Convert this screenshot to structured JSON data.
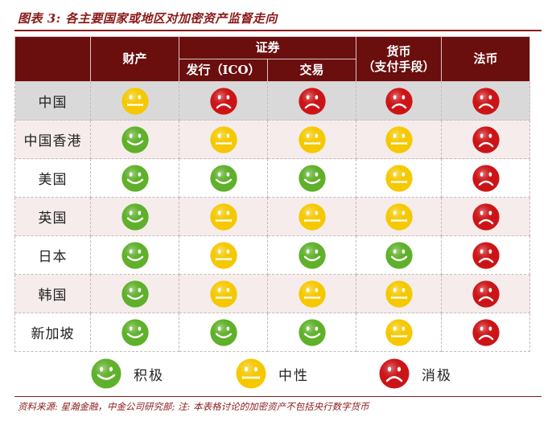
{
  "title": "图表 3:  各主要国家或地区对加密资产监督走向",
  "header": {
    "property": "财产",
    "securities": "证券",
    "issuance": "发行（ICO）",
    "trading": "交易",
    "currency_line1": "货币",
    "currency_line2": "（支付手段）",
    "legal_tender": "法币"
  },
  "rows": [
    {
      "name": "中国",
      "cells": [
        "neutral",
        "negative",
        "negative",
        "negative",
        "negative"
      ]
    },
    {
      "name": "中国香港",
      "cells": [
        "positive",
        "neutral",
        "neutral",
        "neutral",
        "negative"
      ]
    },
    {
      "name": "美国",
      "cells": [
        "positive",
        "positive",
        "positive",
        "neutral",
        "negative"
      ]
    },
    {
      "name": "英国",
      "cells": [
        "positive",
        "neutral",
        "neutral",
        "neutral",
        "negative"
      ]
    },
    {
      "name": "日本",
      "cells": [
        "positive",
        "neutral",
        "positive",
        "positive",
        "negative"
      ]
    },
    {
      "name": "韩国",
      "cells": [
        "positive",
        "neutral",
        "neutral",
        "neutral",
        "negative"
      ]
    },
    {
      "name": "新加坡",
      "cells": [
        "positive",
        "positive",
        "positive",
        "neutral",
        "negative"
      ]
    }
  ],
  "legend": {
    "positive": "积极",
    "neutral": "中性",
    "negative": "消极"
  },
  "colors": {
    "positive": "#5fb02a",
    "neutral": "#f5c800",
    "negative": "#cc1417",
    "header": "#6b0e0e",
    "accent": "#8b1a1a"
  },
  "source": "资料来源:  星瀚金融，中金公司研究部;  注:  本表格讨论的加密资产不包括央行数字货币"
}
